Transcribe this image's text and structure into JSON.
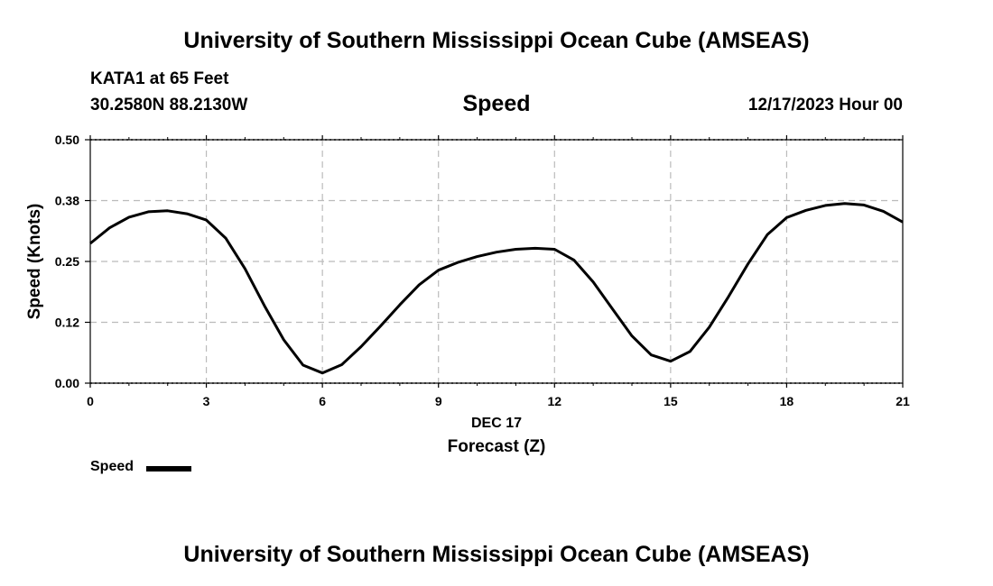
{
  "header": {
    "title_top": "University of Southern Mississippi Ocean Cube (AMSEAS)",
    "station": "KATA1 at 65 Feet",
    "coords": "30.2580N  88.2130W",
    "variable": "Speed",
    "datetime": "12/17/2023 Hour 00"
  },
  "footer": {
    "title_bottom": "University of Southern Mississippi Ocean Cube (AMSEAS)"
  },
  "chart_data": {
    "type": "line",
    "ylabel": "Speed (Knots)",
    "xlabel": "Forecast (Z)",
    "date_label": "DEC 17",
    "xlim": [
      0,
      21
    ],
    "ylim": [
      0,
      0.5
    ],
    "xticks": [
      0,
      3,
      6,
      9,
      12,
      15,
      18,
      21
    ],
    "xtick_labels": [
      "0",
      "3",
      "6",
      "9",
      "12",
      "15",
      "18",
      "21"
    ],
    "yticks": [
      0,
      0.125,
      0.25,
      0.375,
      0.5
    ],
    "ytick_labels": [
      "0.00",
      "0.12",
      "0.25",
      "0.38",
      "0.50"
    ],
    "grid": true,
    "legend": {
      "label": "Speed",
      "placement": "bottom-left"
    },
    "series": [
      {
        "name": "Speed",
        "color": "#000000",
        "x": [
          0,
          0.5,
          1,
          1.5,
          2,
          2.5,
          3,
          3.5,
          4,
          4.5,
          5,
          5.5,
          6,
          6.5,
          7,
          7.5,
          8,
          8.5,
          9,
          9.5,
          10,
          10.5,
          11,
          11.5,
          12,
          12.5,
          13,
          13.5,
          14,
          14.5,
          15,
          15.5,
          16,
          16.5,
          17,
          17.5,
          18,
          18.5,
          19,
          19.5,
          20,
          20.5,
          21
        ],
        "values": [
          0.287,
          0.319,
          0.341,
          0.352,
          0.354,
          0.348,
          0.335,
          0.298,
          0.235,
          0.159,
          0.089,
          0.037,
          0.021,
          0.038,
          0.075,
          0.117,
          0.161,
          0.202,
          0.232,
          0.248,
          0.26,
          0.269,
          0.275,
          0.277,
          0.275,
          0.253,
          0.208,
          0.152,
          0.097,
          0.058,
          0.045,
          0.065,
          0.115,
          0.178,
          0.245,
          0.305,
          0.34,
          0.355,
          0.365,
          0.369,
          0.366,
          0.353,
          0.331
        ]
      }
    ]
  }
}
